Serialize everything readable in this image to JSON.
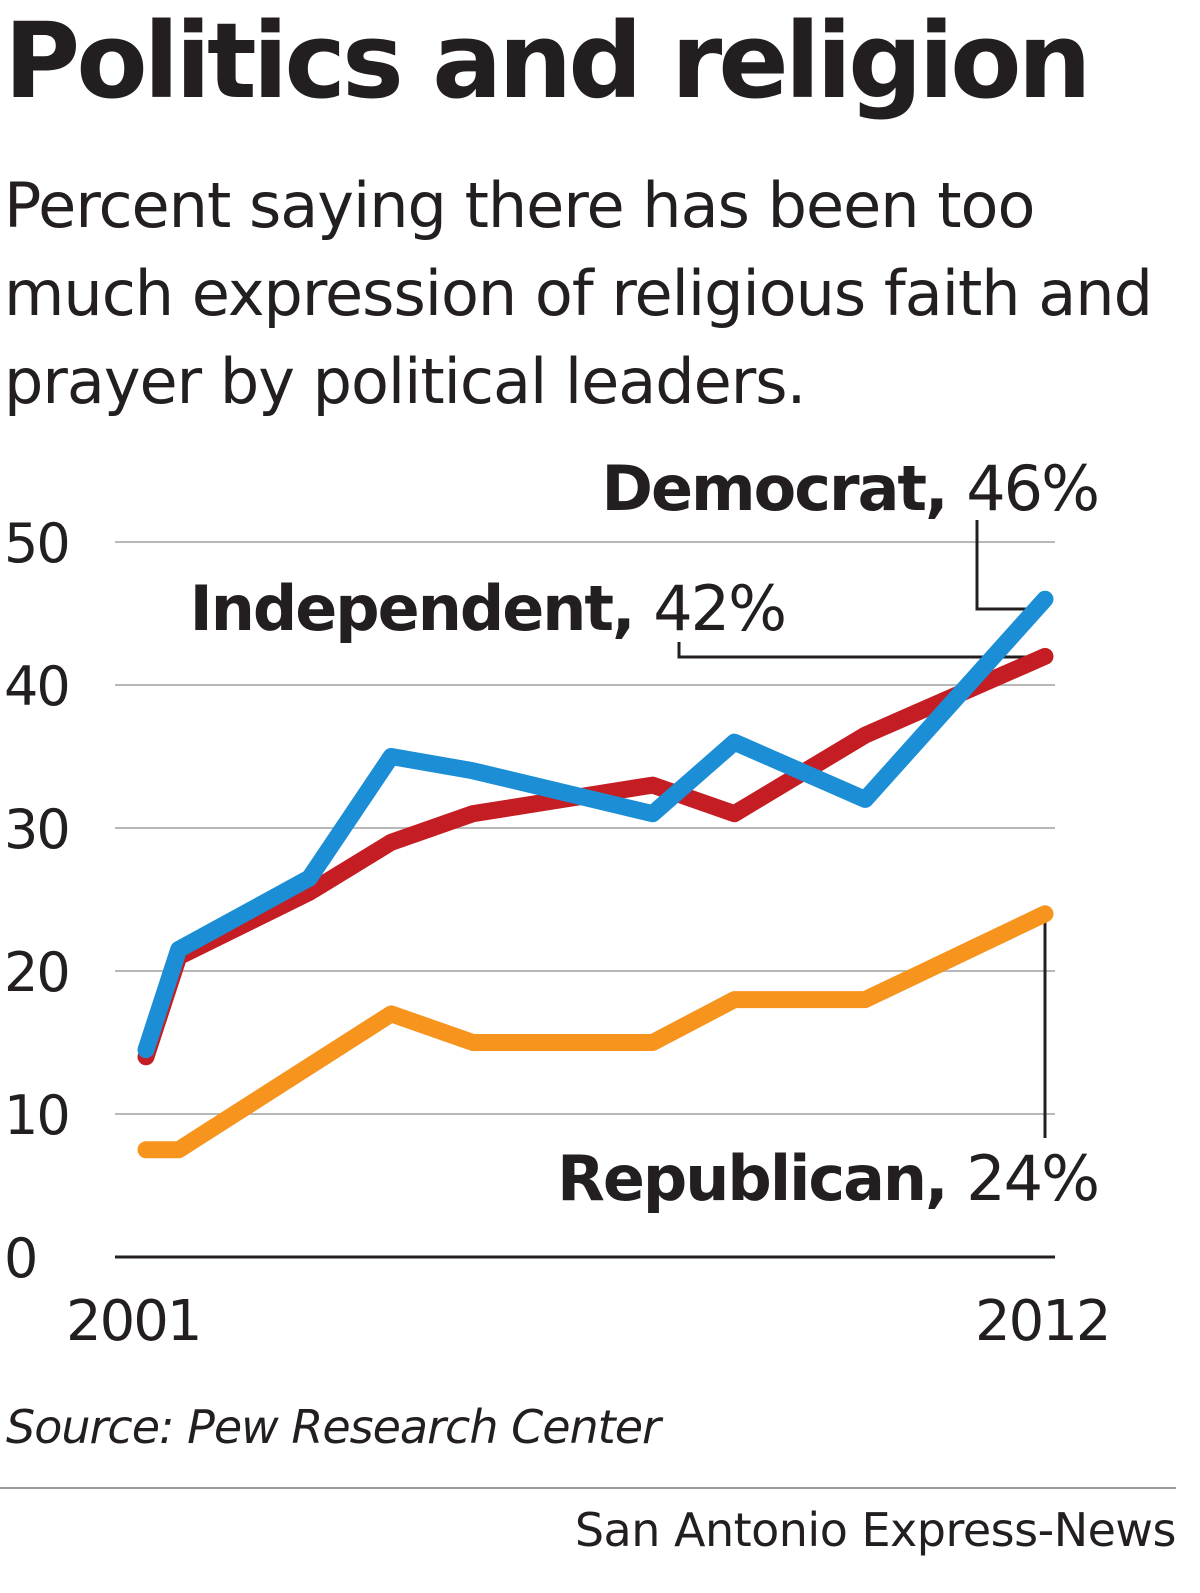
{
  "header": {
    "title": "Politics and religion",
    "subtitle": "Percent saying there has been too much expression of religious faith and prayer by political leaders."
  },
  "chart_data": {
    "type": "line",
    "ylim": [
      0,
      50
    ],
    "yticks": [
      "0",
      "10",
      "20",
      "30",
      "40",
      "50"
    ],
    "xlim": [
      2001,
      2012
    ],
    "xticks": [
      "2001",
      "2012"
    ],
    "grid": true,
    "series": [
      {
        "name": "Independent",
        "value_label": "42%",
        "color": "#c41e24",
        "x": [
          2001,
          2001.4,
          2003,
          2004,
          2005,
          2007.2,
          2008.2,
          2009.8,
          2012
        ],
        "values": [
          14,
          21,
          25.5,
          29,
          31,
          33,
          31,
          36.5,
          42
        ]
      },
      {
        "name": "Democrat",
        "value_label": "46%",
        "color": "#1c8ed6",
        "x": [
          2001,
          2001.4,
          2003,
          2004,
          2005,
          2007.2,
          2008.2,
          2009.8,
          2012
        ],
        "values": [
          14.5,
          21.5,
          26.5,
          35,
          34,
          31,
          36,
          32,
          46
        ]
      },
      {
        "name": "Republican",
        "value_label": "24%",
        "color": "#f7941d",
        "x": [
          2001,
          2001.4,
          2004,
          2005,
          2007.2,
          2008.2,
          2009.8,
          2012
        ],
        "values": [
          7.5,
          7.5,
          17,
          15,
          15,
          18,
          18,
          24
        ]
      }
    ]
  },
  "footer": {
    "source": "Source: Pew Research Center",
    "credit": "San Antonio Express-News"
  }
}
